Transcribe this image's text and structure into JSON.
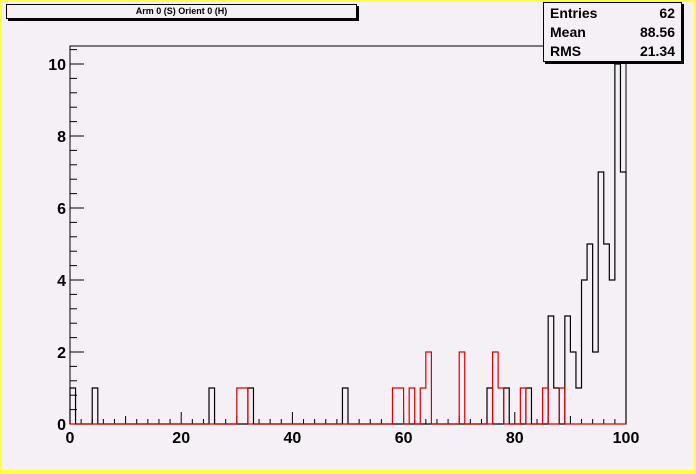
{
  "title": "Arm 0 (S) Orient 0 (H)",
  "stats": [
    {
      "label": "Entries",
      "value": "62"
    },
    {
      "label": "Mean",
      "value": "88.56"
    },
    {
      "label": "RMS",
      "value": "21.34"
    }
  ],
  "colors": {
    "background": "#f5f0f5",
    "frame": "#ffff44",
    "series_black": "#000000",
    "series_red": "#dd0000"
  },
  "chart_data": {
    "type": "histogram",
    "xlim": [
      0,
      100
    ],
    "ylim": [
      0,
      10.5
    ],
    "bin_width": 1,
    "xticks": [
      0,
      20,
      40,
      60,
      80,
      100
    ],
    "yticks": [
      0,
      2,
      4,
      6,
      8,
      10
    ],
    "xlabel": "",
    "ylabel": "",
    "series": [
      {
        "color": "#000000",
        "bins": [
          {
            "x": 0,
            "y": 1
          },
          {
            "x": 4,
            "y": 1
          },
          {
            "x": 25,
            "y": 1
          },
          {
            "x": 32,
            "y": 1
          },
          {
            "x": 49,
            "y": 1
          },
          {
            "x": 75,
            "y": 1
          },
          {
            "x": 78,
            "y": 1
          },
          {
            "x": 82,
            "y": 1
          },
          {
            "x": 86,
            "y": 3
          },
          {
            "x": 87,
            "y": 1
          },
          {
            "x": 89,
            "y": 3
          },
          {
            "x": 90,
            "y": 2
          },
          {
            "x": 91,
            "y": 1
          },
          {
            "x": 92,
            "y": 4
          },
          {
            "x": 93,
            "y": 5
          },
          {
            "x": 94,
            "y": 2
          },
          {
            "x": 95,
            "y": 7
          },
          {
            "x": 96,
            "y": 5
          },
          {
            "x": 97,
            "y": 4
          },
          {
            "x": 98,
            "y": 10
          },
          {
            "x": 99,
            "y": 7
          }
        ]
      },
      {
        "color": "#dd0000",
        "bins": [
          {
            "x": 30,
            "y": 1
          },
          {
            "x": 31,
            "y": 1
          },
          {
            "x": 58,
            "y": 1
          },
          {
            "x": 59,
            "y": 1
          },
          {
            "x": 61,
            "y": 1
          },
          {
            "x": 63,
            "y": 1
          },
          {
            "x": 64,
            "y": 2
          },
          {
            "x": 70,
            "y": 2
          },
          {
            "x": 76,
            "y": 2
          },
          {
            "x": 77,
            "y": 1
          },
          {
            "x": 81,
            "y": 1
          },
          {
            "x": 85,
            "y": 1
          },
          {
            "x": 88,
            "y": 1
          }
        ]
      }
    ]
  }
}
